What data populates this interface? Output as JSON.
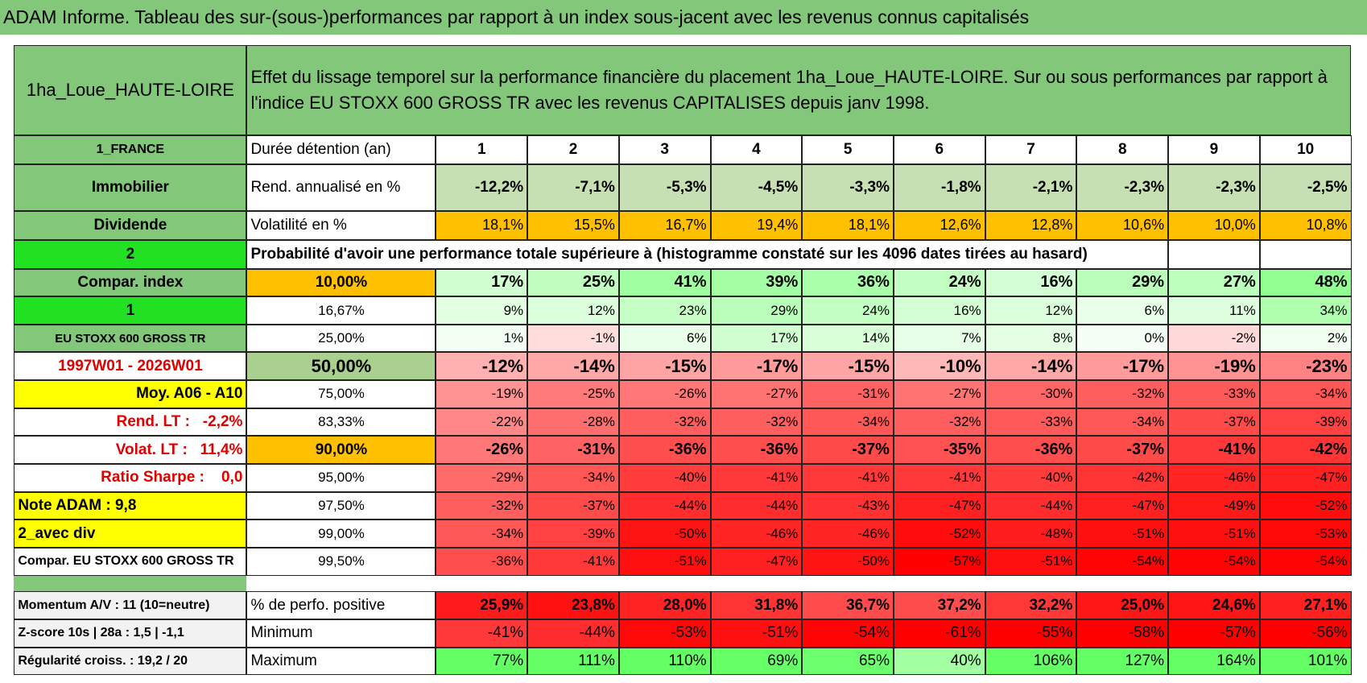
{
  "title": "ADAM Informe. Tableau des sur-(sous-)performances par rapport à un index sous-jacent avec les revenus connus capitalisés",
  "header": {
    "name": "1ha_Loue_HAUTE-LOIRE",
    "description": "Effet du lissage temporel sur la performance financière du placement 1ha_Loue_HAUTE-LOIRE. Sur ou sous performances par rapport à l'indice EU STOXX 600 GROSS TR avec les revenus CAPITALISES depuis janv 1998."
  },
  "side_labels": [
    "1_FRANCE",
    "Immobilier",
    "Dividende",
    "2",
    "Compar. index",
    "1",
    "EU STOXX 600 GROSS TR",
    "1997W01 - 2026W01",
    "Moy. A06 - A10",
    "Rend. LT :   -2,2%",
    "Volat. LT :   11,4%",
    "Ratio Sharpe :    0,0",
    "Note ADAM : 9,8",
    "2_avec div",
    "Compar. EU STOXX 600 GROSS TR"
  ],
  "stats": {
    "row_labels": [
      "Durée détention (an)",
      "Rend. annualisé en %",
      "Volatilité en %"
    ],
    "durations": [
      "1",
      "2",
      "3",
      "4",
      "5",
      "6",
      "7",
      "8",
      "9",
      "10"
    ],
    "rows": [
      [
        "-12,2%",
        "-7,1%",
        "-5,3%",
        "-4,5%",
        "-3,3%",
        "-1,8%",
        "-2,1%",
        "-2,3%",
        "-2,3%",
        "-2,5%"
      ],
      [
        "18,1%",
        "15,5%",
        "16,7%",
        "19,4%",
        "18,1%",
        "12,6%",
        "12,8%",
        "10,6%",
        "10,0%",
        "10,8%"
      ]
    ]
  },
  "probability_title": "Probabilité d'avoir une performance totale supérieure à (histogramme constaté sur les 4096 dates tirées au hasard)",
  "quantiles": [
    {
      "label": "10,00%",
      "values": [
        "17%",
        "25%",
        "41%",
        "39%",
        "36%",
        "24%",
        "16%",
        "29%",
        "27%",
        "48%"
      ]
    },
    {
      "label": "16,67%",
      "values": [
        "9%",
        "12%",
        "23%",
        "29%",
        "24%",
        "16%",
        "12%",
        "6%",
        "11%",
        "34%"
      ]
    },
    {
      "label": "25,00%",
      "values": [
        "1%",
        "-1%",
        "6%",
        "17%",
        "14%",
        "7%",
        "8%",
        "0%",
        "-2%",
        "2%"
      ]
    },
    {
      "label": "50,00%",
      "values": [
        "-12%",
        "-14%",
        "-15%",
        "-17%",
        "-15%",
        "-10%",
        "-14%",
        "-17%",
        "-19%",
        "-23%"
      ]
    },
    {
      "label": "75,00%",
      "values": [
        "-19%",
        "-25%",
        "-26%",
        "-27%",
        "-31%",
        "-27%",
        "-30%",
        "-32%",
        "-33%",
        "-34%"
      ]
    },
    {
      "label": "83,33%",
      "values": [
        "-22%",
        "-28%",
        "-32%",
        "-32%",
        "-34%",
        "-32%",
        "-33%",
        "-34%",
        "-37%",
        "-39%"
      ]
    },
    {
      "label": "90,00%",
      "values": [
        "-26%",
        "-31%",
        "-36%",
        "-36%",
        "-37%",
        "-35%",
        "-36%",
        "-37%",
        "-41%",
        "-42%"
      ]
    },
    {
      "label": "95,00%",
      "values": [
        "-29%",
        "-34%",
        "-40%",
        "-41%",
        "-41%",
        "-41%",
        "-40%",
        "-42%",
        "-46%",
        "-47%"
      ]
    },
    {
      "label": "97,50%",
      "values": [
        "-32%",
        "-37%",
        "-44%",
        "-44%",
        "-43%",
        "-47%",
        "-44%",
        "-47%",
        "-49%",
        "-52%"
      ]
    },
    {
      "label": "99,00%",
      "values": [
        "-34%",
        "-39%",
        "-50%",
        "-46%",
        "-46%",
        "-52%",
        "-48%",
        "-51%",
        "-51%",
        "-53%"
      ]
    },
    {
      "label": "99,50%",
      "values": [
        "-36%",
        "-41%",
        "-51%",
        "-47%",
        "-50%",
        "-57%",
        "-51%",
        "-54%",
        "-54%",
        "-54%"
      ]
    }
  ],
  "bottom": [
    {
      "side": "Momentum A/V : 11 (10=neutre)",
      "label": "% de perfo. positive",
      "values": [
        "25,9%",
        "23,8%",
        "28,0%",
        "31,8%",
        "36,7%",
        "37,2%",
        "32,2%",
        "25,0%",
        "24,6%",
        "27,1%"
      ]
    },
    {
      "side": "Z-score 10s | 28a : 1,5 | -1,1",
      "label": "Minimum",
      "values": [
        "-41%",
        "-44%",
        "-53%",
        "-51%",
        "-54%",
        "-61%",
        "-55%",
        "-58%",
        "-57%",
        "-56%"
      ]
    },
    {
      "side": "Régularité croiss. : 19,2 / 20",
      "label": "Maximum",
      "values": [
        "77%",
        "111%",
        "110%",
        "69%",
        "65%",
        "40%",
        "106%",
        "127%",
        "164%",
        "101%"
      ]
    }
  ]
}
